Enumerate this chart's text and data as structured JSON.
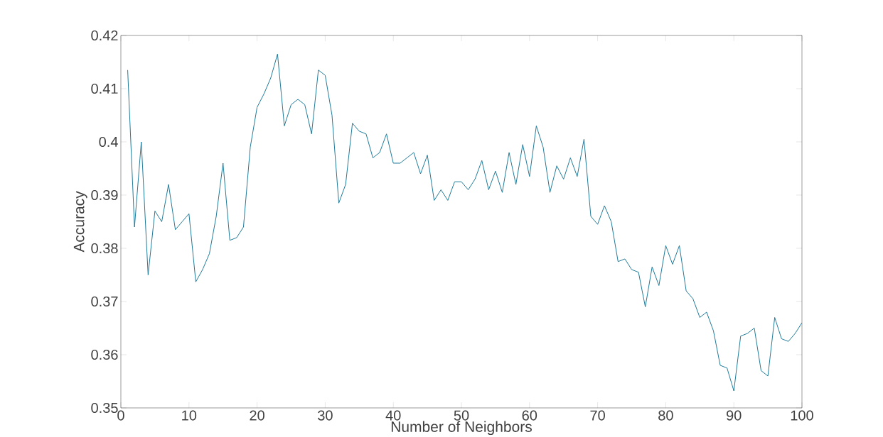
{
  "chart_data": {
    "type": "line",
    "xlabel": "Number of Neighbors",
    "ylabel": "Accuracy",
    "x": [
      1,
      2,
      3,
      4,
      5,
      6,
      7,
      8,
      9,
      10,
      11,
      12,
      13,
      14,
      15,
      16,
      17,
      18,
      19,
      20,
      21,
      22,
      23,
      24,
      25,
      26,
      27,
      28,
      29,
      30,
      31,
      32,
      33,
      34,
      35,
      36,
      37,
      38,
      39,
      40,
      41,
      42,
      43,
      44,
      45,
      46,
      47,
      48,
      49,
      50,
      51,
      52,
      53,
      54,
      55,
      56,
      57,
      58,
      59,
      60,
      61,
      62,
      63,
      64,
      65,
      66,
      67,
      68,
      69,
      70,
      71,
      72,
      73,
      74,
      75,
      76,
      77,
      78,
      79,
      80,
      81,
      82,
      83,
      84,
      85,
      86,
      87,
      88,
      89,
      90,
      91,
      92,
      93,
      94,
      95,
      96,
      97,
      98,
      99,
      100
    ],
    "series": [
      {
        "color": "#1f7a9a",
        "values": [
          0.4135,
          0.384,
          0.4,
          0.375,
          0.387,
          0.385,
          0.392,
          0.3835,
          0.385,
          0.3865,
          0.3737,
          0.376,
          0.379,
          0.386,
          0.396,
          0.3815,
          0.382,
          0.384,
          0.399,
          0.4065,
          0.409,
          0.412,
          0.4165,
          0.403,
          0.407,
          0.408,
          0.407,
          0.4015,
          0.4135,
          0.4125,
          0.405,
          0.3885,
          0.392,
          0.4035,
          0.402,
          0.4015,
          0.397,
          0.398,
          0.4015,
          0.396,
          0.396,
          0.397,
          0.398,
          0.394,
          0.3975,
          0.389,
          0.391,
          0.389,
          0.3925,
          0.3925,
          0.391,
          0.393,
          0.3965,
          0.391,
          0.3945,
          0.3905,
          0.398,
          0.392,
          0.3995,
          0.3935,
          0.403,
          0.399,
          0.3905,
          0.3955,
          0.393,
          0.397,
          0.3935,
          0.4005,
          0.386,
          0.3845,
          0.388,
          0.385,
          0.3775,
          0.378,
          0.376,
          0.3755,
          0.369,
          0.3765,
          0.373,
          0.3805,
          0.377,
          0.3805,
          0.372,
          0.3705,
          0.367,
          0.368,
          0.3645,
          0.358,
          0.3575,
          0.3532,
          0.3635,
          0.364,
          0.365,
          0.357,
          0.356,
          0.367,
          0.363,
          0.3625,
          0.364,
          0.366
        ]
      }
    ],
    "xlim": [
      0,
      100
    ],
    "ylim": [
      0.35,
      0.42
    ],
    "xticks": [
      0,
      10,
      20,
      30,
      40,
      50,
      60,
      70,
      80,
      90,
      100
    ],
    "yticks": [
      0.35,
      0.36,
      0.37,
      0.38,
      0.39,
      0.4,
      0.41,
      0.42
    ],
    "grid": false
  }
}
